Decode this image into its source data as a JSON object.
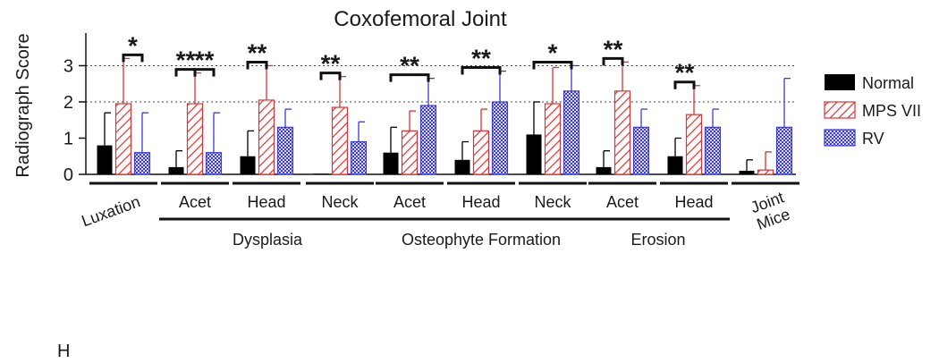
{
  "panel_letter": "H",
  "chart_data": {
    "type": "bar",
    "title": "Coxofemoral Joint",
    "xlabel": "",
    "ylabel": "Radiograph Score",
    "ylim": [
      0,
      3.9
    ],
    "yticks": [
      0,
      1,
      2,
      3
    ],
    "grid": {
      "horizontal_dotted_at": [
        2,
        3
      ]
    },
    "legend_position": "right",
    "categories": [
      "Luxation",
      "Acet",
      "Head",
      "Neck",
      "Acet",
      "Head",
      "Neck",
      "Acet",
      "Head",
      "Joint Mice"
    ],
    "category_groups": [
      {
        "label": "Dysplasia",
        "members": [
          1,
          2,
          3
        ]
      },
      {
        "label": "Osteophyte Formation",
        "members": [
          4,
          5,
          6
        ]
      },
      {
        "label": "Erosion",
        "members": [
          7,
          8
        ]
      }
    ],
    "rotated_categories": [
      0,
      9
    ],
    "series": [
      {
        "name": "Normal",
        "pattern": "solid",
        "color": "#000000",
        "values": [
          0.8,
          0.2,
          0.5,
          0.02,
          0.6,
          0.4,
          1.1,
          0.2,
          0.5,
          0.1
        ],
        "errors": [
          0.9,
          0.45,
          0.7,
          0.0,
          0.7,
          0.5,
          0.9,
          0.45,
          0.5,
          0.3
        ]
      },
      {
        "name": "MPS VII",
        "pattern": "hatched",
        "color": "#e03030",
        "values": [
          1.95,
          1.95,
          2.05,
          1.85,
          1.2,
          1.2,
          1.95,
          2.3,
          1.65,
          0.12
        ],
        "errors": [
          1.25,
          0.85,
          0.95,
          0.85,
          0.55,
          0.6,
          1.0,
          0.8,
          0.8,
          0.5
        ]
      },
      {
        "name": "RV",
        "pattern": "checkered",
        "color": "#3b3bdb",
        "values": [
          0.6,
          0.6,
          1.3,
          0.9,
          1.9,
          2.0,
          2.3,
          1.3,
          1.3,
          1.3
        ],
        "errors": [
          1.1,
          1.1,
          0.5,
          0.55,
          0.75,
          0.85,
          0.7,
          0.5,
          0.5,
          1.35
        ]
      }
    ],
    "significance": [
      {
        "category": 0,
        "pair": [
          1,
          2
        ],
        "label": "*"
      },
      {
        "category": 1,
        "pair": [
          0,
          1
        ],
        "label": "**"
      },
      {
        "category": 1,
        "pair": [
          1,
          2
        ],
        "label": "**"
      },
      {
        "category": 2,
        "pair": [
          0,
          1
        ],
        "label": "**"
      },
      {
        "category": 3,
        "pair": [
          0,
          1
        ],
        "label": "**"
      },
      {
        "category": 4,
        "pair": [
          0,
          2
        ],
        "label": "**"
      },
      {
        "category": 5,
        "pair": [
          0,
          2
        ],
        "label": "**"
      },
      {
        "category": 6,
        "pair": [
          0,
          2
        ],
        "label": "*"
      },
      {
        "category": 7,
        "pair": [
          0,
          1
        ],
        "label": "**"
      },
      {
        "category": 8,
        "pair": [
          0,
          1
        ],
        "label": "**"
      }
    ]
  }
}
